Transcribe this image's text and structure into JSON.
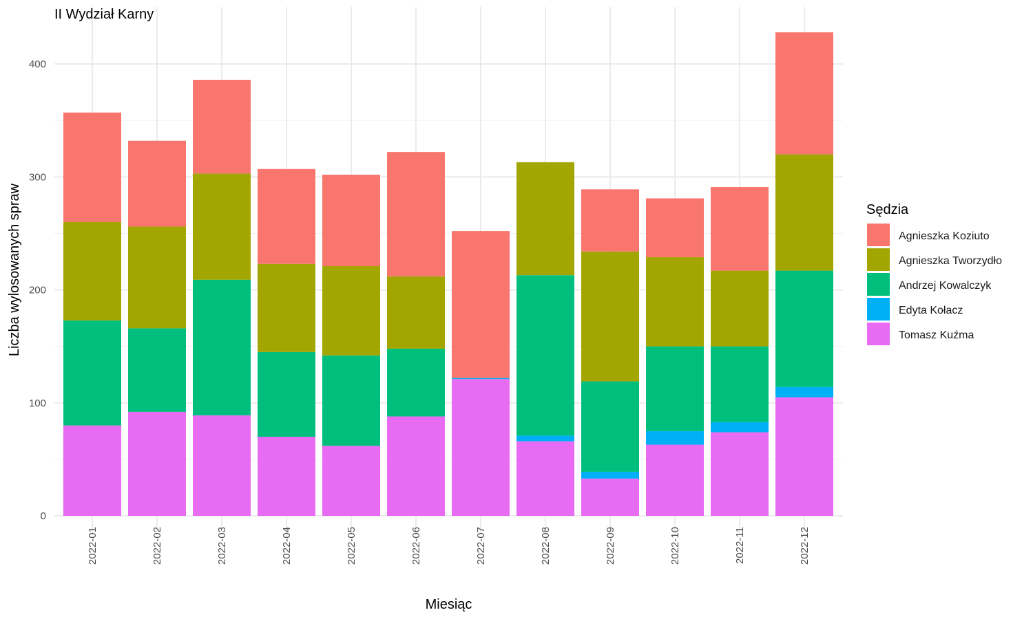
{
  "chart_data": {
    "type": "bar",
    "stacked": true,
    "title": "II Wydział Karny",
    "xlabel": "Miesiąc",
    "ylabel": "Liczba wylosowanych spraw",
    "ylim": [
      0,
      430
    ],
    "yticks": [
      0,
      100,
      200,
      300,
      400
    ],
    "grid": true,
    "legend_title": "Sędzia",
    "legend_position": "right",
    "categories": [
      "2022-01",
      "2022-02",
      "2022-03",
      "2022-04",
      "2022-05",
      "2022-06",
      "2022-07",
      "2022-08",
      "2022-09",
      "2022-10",
      "2022-11",
      "2022-12"
    ],
    "series": [
      {
        "name": "Agnieszka Koziuto",
        "color": "#F8766D",
        "values": [
          97,
          76,
          83,
          84,
          81,
          110,
          130,
          0,
          55,
          52,
          74,
          108
        ]
      },
      {
        "name": "Agnieszka Tworzydło",
        "color": "#A3A500",
        "values": [
          87,
          90,
          94,
          78,
          79,
          64,
          0,
          100,
          115,
          79,
          67,
          103
        ]
      },
      {
        "name": "Andrzej Kowalczyk",
        "color": "#00BF7D",
        "values": [
          93,
          74,
          120,
          75,
          80,
          60,
          0,
          142,
          80,
          75,
          67,
          103
        ]
      },
      {
        "name": "Edyta Kołacz",
        "color": "#00B0F6",
        "values": [
          0,
          0,
          0,
          0,
          0,
          0,
          1,
          5,
          6,
          12,
          9,
          9
        ]
      },
      {
        "name": "Tomasz Kuźma",
        "color": "#E76BF3",
        "values": [
          80,
          92,
          89,
          70,
          62,
          88,
          121,
          66,
          33,
          63,
          74,
          105
        ]
      }
    ]
  }
}
